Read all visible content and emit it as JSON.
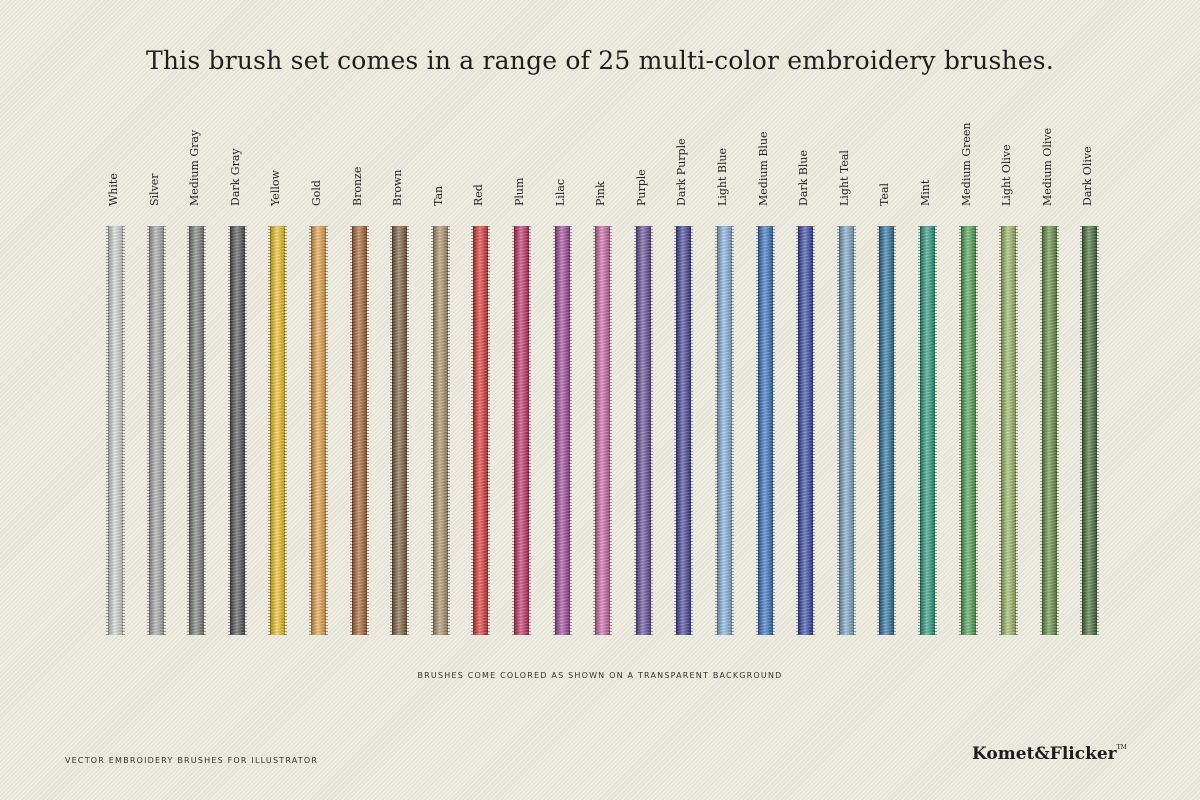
{
  "title": "This brush set comes in a range of 25 multi-color embroidery brushes.",
  "brushes": [
    {
      "name": "White",
      "color": "#d9d9d9"
    },
    {
      "name": "Silver",
      "color": "#a9a9a9"
    },
    {
      "name": "Medium Gray",
      "color": "#7b7b7b"
    },
    {
      "name": "Dark Gray",
      "color": "#4e4e4e"
    },
    {
      "name": "Yellow",
      "color": "#f5c518"
    },
    {
      "name": "Gold",
      "color": "#eca33c"
    },
    {
      "name": "Bronze",
      "color": "#a9602b"
    },
    {
      "name": "Brown",
      "color": "#7a5a34"
    },
    {
      "name": "Tan",
      "color": "#ae9167"
    },
    {
      "name": "Red",
      "color": "#e22b2b"
    },
    {
      "name": "Plum",
      "color": "#c3275e"
    },
    {
      "name": "Lilac",
      "color": "#a33f9e"
    },
    {
      "name": "Pink",
      "color": "#d160a8"
    },
    {
      "name": "Purple",
      "color": "#5d4797"
    },
    {
      "name": "Dark Purple",
      "color": "#3a3b95"
    },
    {
      "name": "Light Blue",
      "color": "#83b4e9"
    },
    {
      "name": "Medium Blue",
      "color": "#2c6fc4"
    },
    {
      "name": "Dark Blue",
      "color": "#2c40a6"
    },
    {
      "name": "Light Teal",
      "color": "#76a8cc"
    },
    {
      "name": "Teal",
      "color": "#1e6ea0"
    },
    {
      "name": "Mint",
      "color": "#1f9a7a"
    },
    {
      "name": "Medium Green",
      "color": "#46a54d"
    },
    {
      "name": "Light Olive",
      "color": "#9bbb5c"
    },
    {
      "name": "Medium Olive",
      "color": "#5d8f3b"
    },
    {
      "name": "Dark Olive",
      "color": "#3f6a32"
    }
  ],
  "note": "BRUSHES COME COLORED AS SHOWN ON A TRANSPARENT BACKGROUND",
  "footer": {
    "tagline": "VECTOR EMBROIDERY BRUSHES FOR ILLUSTRATOR",
    "logo": "Komet&Flicker",
    "logo_mark": "TM"
  }
}
